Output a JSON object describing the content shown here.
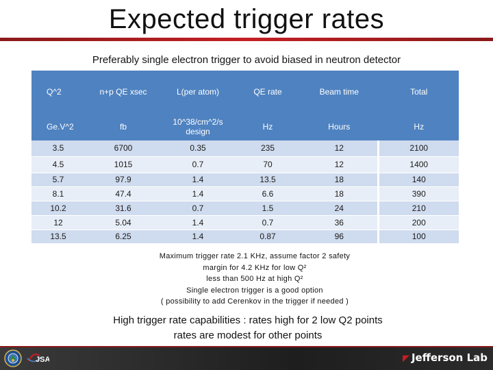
{
  "slide": {
    "title": "Expected trigger rates",
    "subtitle": "Preferably single electron trigger to avoid biased in neutron detector"
  },
  "table": {
    "header_names": [
      "Q^2",
      "n+p QE xsec",
      "L(per atom)",
      "QE rate",
      "Beam time",
      "Total"
    ],
    "header_units": [
      "Ge.V^2",
      "fb",
      "10^38/cm^2/s design",
      "Hz",
      "Hours",
      "Hz"
    ],
    "rows": [
      [
        "3.5",
        "6700",
        "0.35",
        "235",
        "12"
      ],
      [
        "4.5",
        "1015",
        "0.7",
        "70",
        "12"
      ],
      [
        "5.7",
        "97.9",
        "1.4",
        "13.5",
        "18"
      ],
      [
        "8.1",
        "47.4",
        "1.4",
        "6.6",
        "18"
      ],
      [
        "10.2",
        "31.6",
        "0.7",
        "1.5",
        "24"
      ],
      [
        "12",
        "5.04",
        "1.4",
        "0.7",
        "36"
      ],
      [
        "13.5",
        "6.25",
        "1.4",
        "0.87",
        "96"
      ]
    ],
    "totals": [
      "2100",
      "1400",
      "140",
      "390",
      "210",
      "200",
      "100"
    ]
  },
  "notes": [
    "Maximum trigger rate 2.1 KHz, assume factor 2 safety",
    "margin for 4.2 KHz for low Q²",
    "less than 500 Hz at high Q²",
    "Single electron trigger is a good option",
    "( possibility to add Cerenkov in the trigger if needed )"
  ],
  "conclusion": [
    "High trigger rate capabilities : rates high for 2 low Q2 points",
    "rates are modest for other points"
  ],
  "footer": {
    "jsa_text": "JSA",
    "brand": "Jefferson Lab",
    "colors": {
      "bar": "#2b2b2b",
      "accent": "#c41e24",
      "header": "#4f82c0",
      "row": "#cfdbee"
    }
  }
}
